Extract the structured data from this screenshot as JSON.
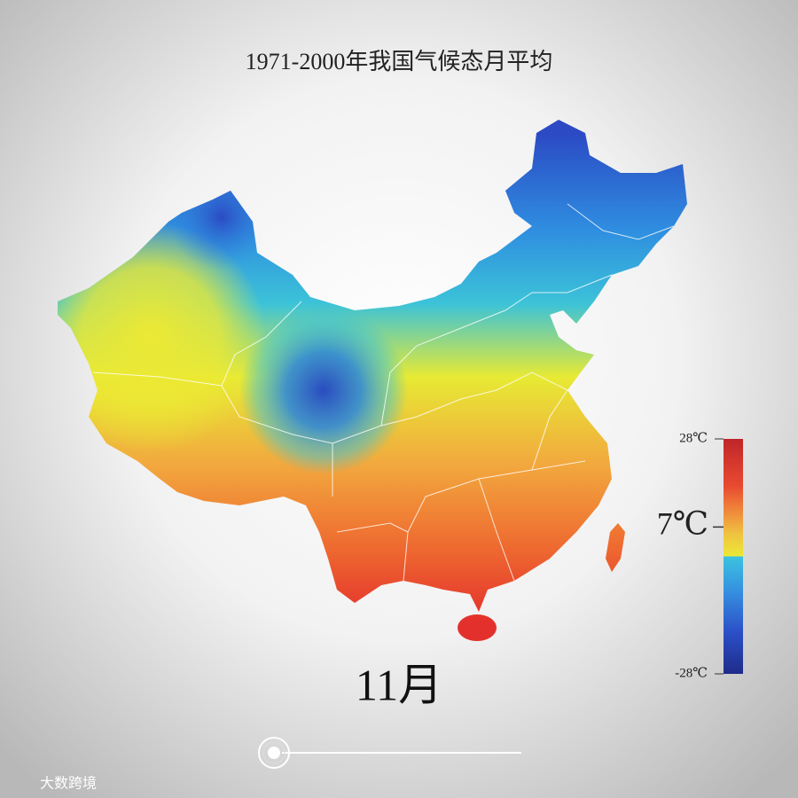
{
  "title": "1971-2000年我国气候态月平均",
  "month": "11月",
  "legend": {
    "ticks": [
      {
        "value": 28,
        "label": "28℃"
      },
      {
        "value": -28,
        "label": "-28℃"
      }
    ],
    "current": {
      "value": 7,
      "label": "7℃"
    }
  },
  "watermark": "大数跨境"
}
